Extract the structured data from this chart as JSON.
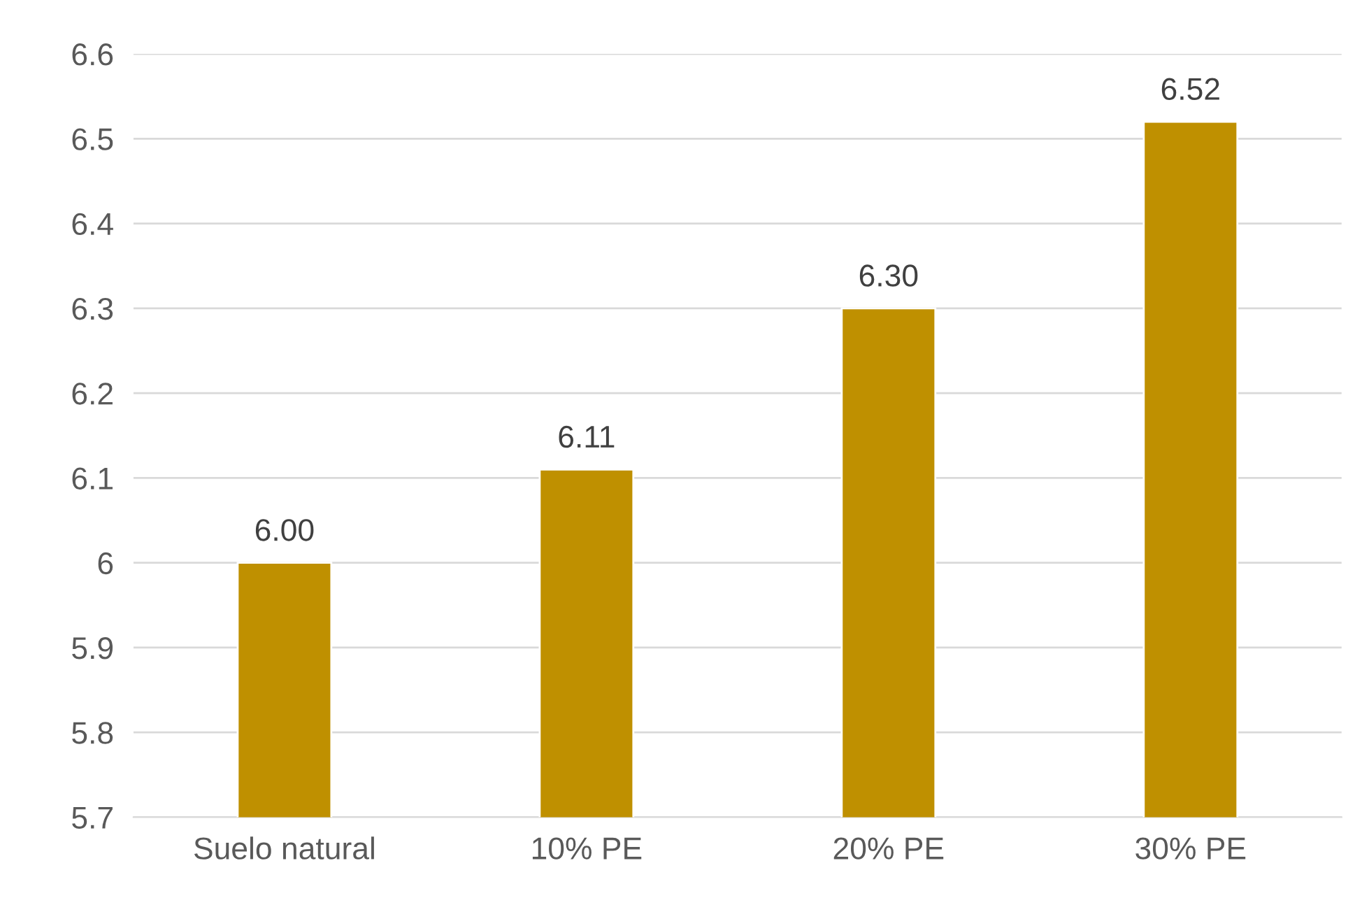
{
  "chart_data": {
    "type": "bar",
    "categories": [
      "Suelo natural",
      "10% PE",
      "20% PE",
      "30% PE"
    ],
    "values": [
      6.0,
      6.11,
      6.3,
      6.52
    ],
    "value_labels": [
      "6.00",
      "6.11",
      "6.30",
      "6.52"
    ],
    "color": "#bf9000",
    "ylim": [
      5.7,
      6.6
    ],
    "yticks": [
      5.7,
      5.8,
      5.9,
      6,
      6.1,
      6.2,
      6.3,
      6.4,
      6.5,
      6.6
    ],
    "grid": "y",
    "legend": false
  }
}
